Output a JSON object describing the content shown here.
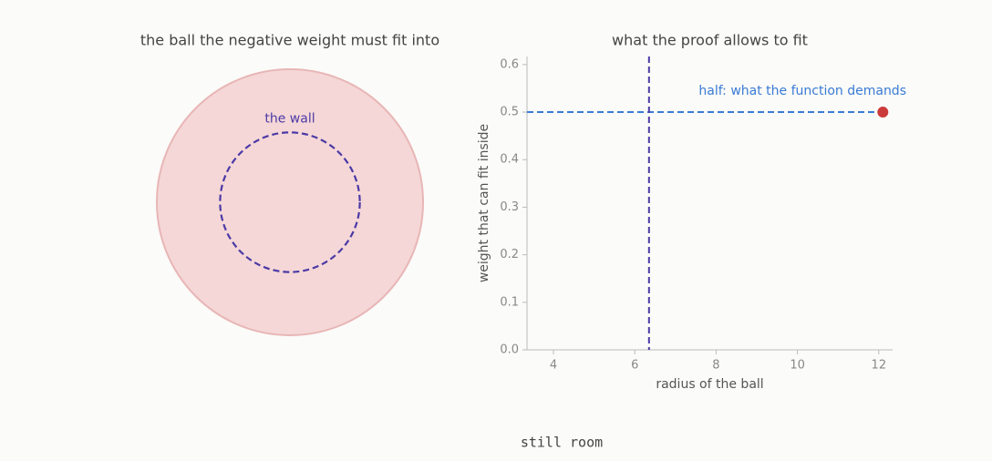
{
  "chart_data": [
    {
      "type": "circles",
      "title": "the ball the negative weight must fit into",
      "ball_radius": 12.1,
      "wall_radius": 6.35,
      "wall_label": "the wall",
      "ball_color": "#f5d7d7",
      "ball_edge": "#e8b6b6",
      "wall_color": "#4b3aa6"
    },
    {
      "type": "scatter",
      "title": "what the proof allows to fit",
      "x_label": "radius of the ball",
      "y_label": "weight that can fit inside",
      "xlim": [
        3.35,
        12.34
      ],
      "ylim": [
        0,
        0.617
      ],
      "xticks": [
        4,
        6,
        8,
        10,
        12
      ],
      "yticks": [
        {
          "value": 0,
          "label": "0.0"
        },
        0.1,
        0.2,
        0.3,
        0.4,
        0.5,
        0.6
      ],
      "series": [
        {
          "x": [
            12.1
          ],
          "values": [
            0.5
          ],
          "color": "#cc3b3b"
        }
      ],
      "hline": {
        "value": 0.5,
        "label": "half: what the function demands",
        "color": "#3a7bd5"
      },
      "vline": {
        "value": 6.35,
        "color": "#4b3aa6"
      }
    }
  ],
  "caption": "still room"
}
